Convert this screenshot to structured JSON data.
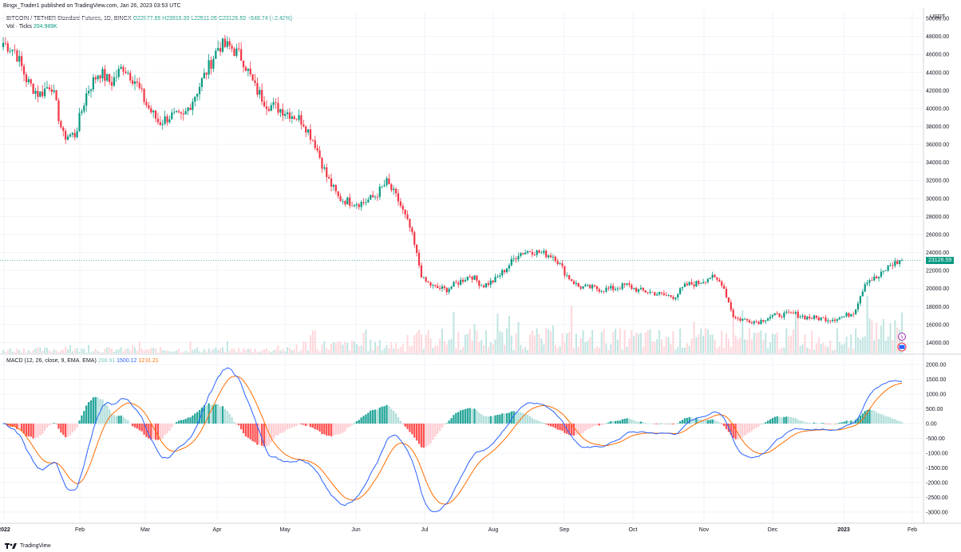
{
  "header": {
    "published": "Bingx_Trader1 published on TradingView.com, Jan 26, 2023 03:53 UTC",
    "currency": "USDT"
  },
  "legend": {
    "symbol": "BITCOIN / TETHER Standard Futures, 1D, BINGX",
    "ohlc": "O22577.86 H23816.39 L22511.06 C23126.59 +548.74 (+2.43%)",
    "vol_label": "Vol · Ticks",
    "vol_value": "204.989K"
  },
  "macd_legend": {
    "label": "MACD (12, 26, close, 9, EMA, EMA)",
    "hist": "208.91",
    "macd": "1500.12",
    "signal": "1291.21"
  },
  "last_price": "23126.59",
  "footer": {
    "brand": "TradingView"
  },
  "colors": {
    "up": "#089981",
    "down": "#f23645",
    "macd": "#2962ff",
    "signal": "#ff6d00",
    "hist_up": "#26a69a",
    "hist_down": "#ff5252"
  },
  "chart_data": [
    {
      "type": "candlestick",
      "title": "BITCOIN / TETHER Standard Futures, 1D, BINGX",
      "ylabel": "USDT",
      "ylim": [
        12800,
        50800
      ],
      "y_ticks": [
        "50000.00",
        "48000.00",
        "46000.00",
        "44000.00",
        "42000.00",
        "40000.00",
        "38000.00",
        "36000.00",
        "34000.00",
        "32000.00",
        "30000.00",
        "28000.00",
        "26000.00",
        "24000.00",
        "22000.00",
        "20000.00",
        "18000.00",
        "16000.00",
        "14000.00"
      ],
      "x_ticks": [
        "2022",
        "Feb",
        "Mar",
        "Apr",
        "May",
        "Jun",
        "Jul",
        "Aug",
        "Sep",
        "Oct",
        "Nov",
        "Dec",
        "2023",
        "Feb"
      ],
      "closes_weekly": [
        47300,
        46400,
        43000,
        41500,
        42800,
        36900,
        37100,
        41900,
        44100,
        42800,
        44700,
        43100,
        40300,
        38400,
        39200,
        38900,
        41500,
        44200,
        47000,
        46800,
        45500,
        42300,
        40500,
        40000,
        39400,
        38600,
        36200,
        32400,
        30000,
        29600,
        29500,
        30200,
        31800,
        29700,
        26500,
        21000,
        20100,
        19900,
        20700,
        21500,
        20300,
        20900,
        22300,
        23900,
        24200,
        23900,
        23600,
        21500,
        20200,
        20100,
        19900,
        20000,
        20400,
        19800,
        19600,
        19300,
        19100,
        20400,
        20600,
        21300,
        20600,
        16700,
        16500,
        16300,
        16900,
        17100,
        17200,
        16800,
        16700,
        16600,
        16800,
        17400,
        20900,
        21200,
        22600,
        23126.59
      ],
      "candles": "fine-grained daily OHLC interpolated from weekly closes in the drawing script"
    },
    {
      "type": "bar",
      "title": "Vol · Ticks",
      "last_value": "204.989K",
      "description": "volume histogram at bottom of price pane"
    },
    {
      "type": "line",
      "title": "MACD (12, 26, close, 9, EMA, EMA)",
      "ylim": [
        -3300,
        2300
      ],
      "y_ticks": [
        "2000.00",
        "1500.00",
        "1000.00",
        "500.00",
        "0.00",
        "-500.00",
        "-1000.00",
        "-1500.00",
        "-2000.00",
        "-2500.00",
        "-3000.00"
      ],
      "series": [
        {
          "name": "MACD",
          "last": 1500.12
        },
        {
          "name": "Signal",
          "last": 1291.21
        },
        {
          "name": "Histogram",
          "last": 208.91
        }
      ]
    }
  ]
}
